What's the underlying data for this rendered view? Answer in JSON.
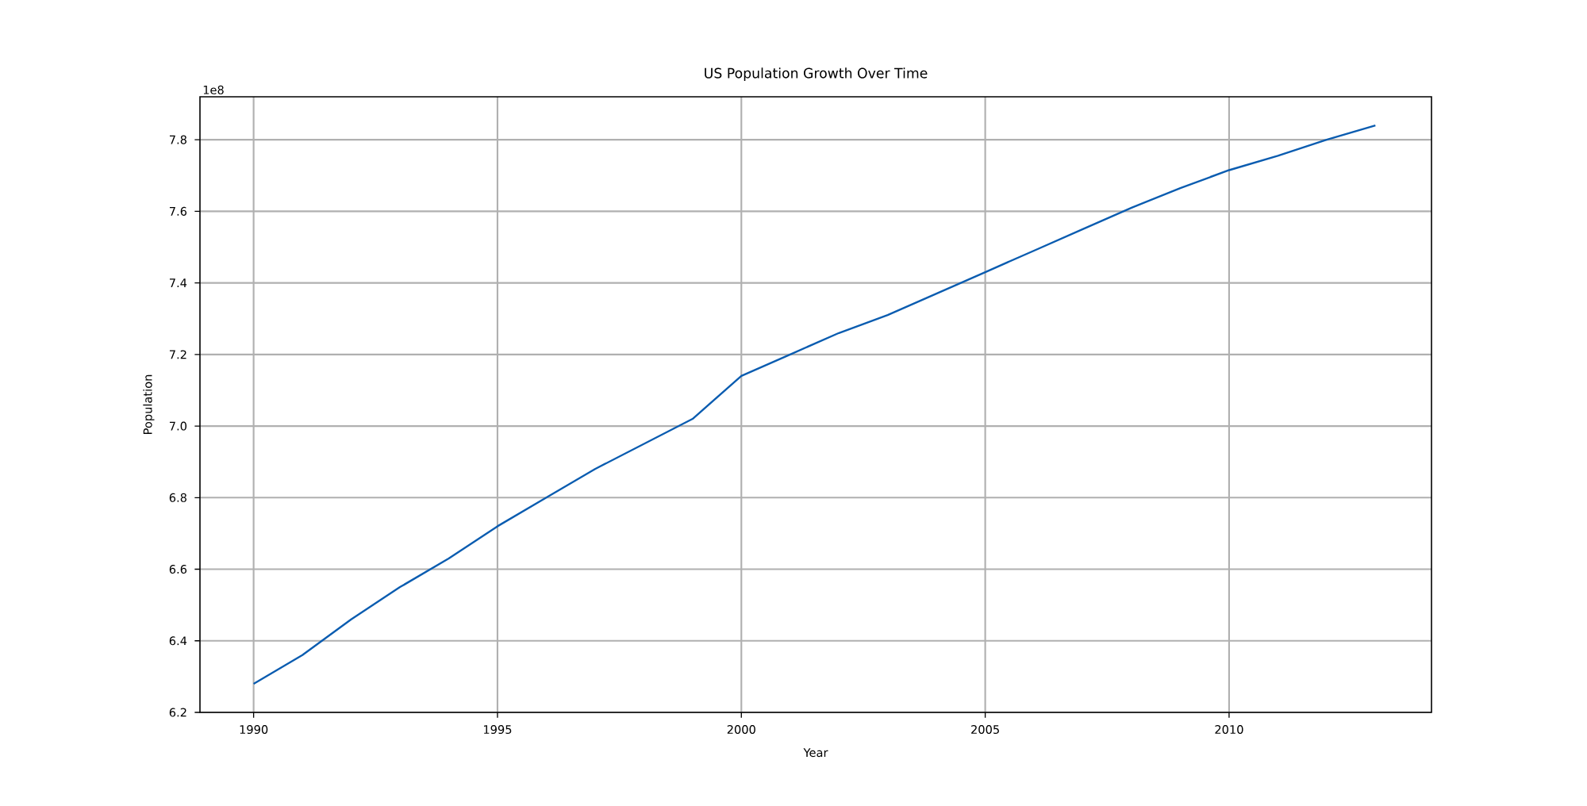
{
  "chart_data": {
    "type": "line",
    "title": "US Population Growth Over Time",
    "xlabel": "Year",
    "ylabel": "Population",
    "annotations": [
      "1e8"
    ],
    "x": [
      1990,
      1991,
      1992,
      1993,
      1994,
      1995,
      1996,
      1997,
      1998,
      1999,
      2000,
      2001,
      2002,
      2003,
      2004,
      2005,
      2006,
      2007,
      2008,
      2009,
      2010,
      2011,
      2012,
      2013
    ],
    "series": [
      {
        "color": "#0a5cb0",
        "values": [
          6.28,
          6.36,
          6.46,
          6.55,
          6.63,
          6.72,
          6.8,
          6.88,
          6.95,
          7.02,
          7.14,
          7.2,
          7.26,
          7.31,
          7.37,
          7.43,
          7.49,
          7.55,
          7.61,
          7.665,
          7.715,
          7.755,
          7.8,
          7.84
        ]
      }
    ],
    "xlim": [
      1988.9,
      2014.15
    ],
    "ylim": [
      6.2,
      7.92
    ],
    "xticks": [
      1990,
      1995,
      2000,
      2005,
      2010
    ],
    "yticks": [
      6.2,
      6.4,
      6.6,
      6.8,
      {
        "value": 7,
        "label": "7.0"
      },
      7.2,
      7.4,
      7.6,
      7.8
    ],
    "grid": true,
    "marker": "none",
    "line_style": "solid"
  }
}
